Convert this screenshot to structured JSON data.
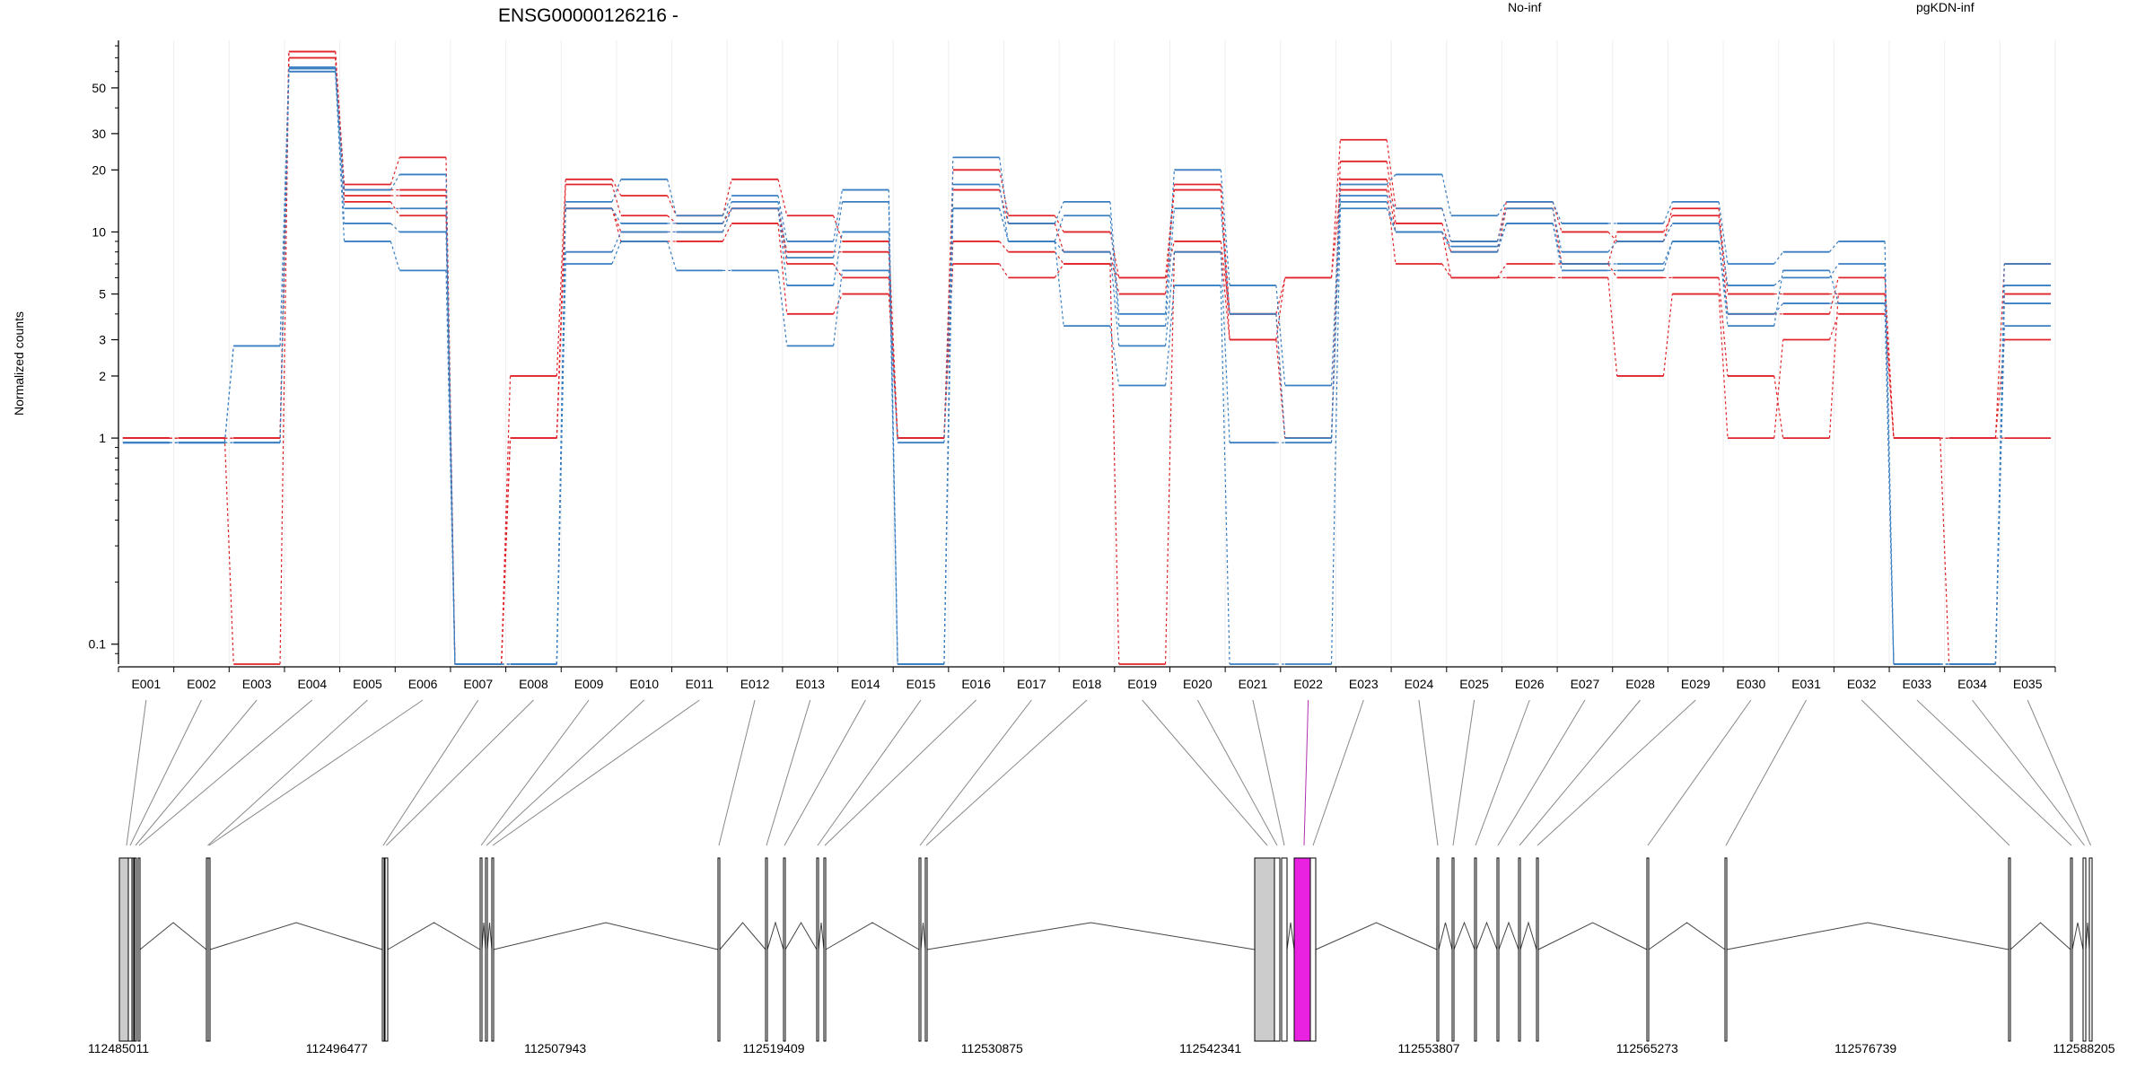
{
  "chart_data": {
    "type": "line",
    "title": "ENSG00000126216 -",
    "xlabel": "",
    "ylabel": "Normalized counts",
    "y_scale": "log",
    "ylim": [
      0.08,
      85
    ],
    "y_ticks": [
      0.1,
      1,
      2,
      3,
      5,
      10,
      20,
      30,
      50
    ],
    "y_tick_labels": [
      "0.1",
      "1",
      "2",
      "3",
      "5",
      "10",
      "20",
      "30",
      "50"
    ],
    "grid": "vertical-light",
    "legend": [
      {
        "name": "No-inf",
        "color": "#e0242a"
      },
      {
        "name": "pgKDN-inf",
        "color": "#3a7fc1"
      }
    ],
    "categories": [
      "E001",
      "E002",
      "E003",
      "E004",
      "E005",
      "E006",
      "E007",
      "E008",
      "E009",
      "E010",
      "E011",
      "E012",
      "E013",
      "E014",
      "E015",
      "E016",
      "E017",
      "E018",
      "E019",
      "E020",
      "E021",
      "E022",
      "E023",
      "E024",
      "E025",
      "E026",
      "E027",
      "E028",
      "E029",
      "E030",
      "E031",
      "E032",
      "E033",
      "E034",
      "E035"
    ],
    "series": [
      {
        "group": "No-inf",
        "color": "#e0242a",
        "values": [
          1,
          1,
          1,
          75,
          17,
          23,
          0.08,
          2,
          18,
          15,
          12,
          18,
          12,
          9,
          1,
          20,
          12,
          10,
          6,
          17,
          4,
          6,
          28,
          13,
          9,
          14,
          10,
          9,
          13,
          5,
          5,
          5,
          1,
          1,
          7
        ]
      },
      {
        "group": "No-inf",
        "color": "#e0242a",
        "values": [
          1,
          1,
          0.08,
          75,
          16,
          16,
          0.08,
          1,
          17,
          12,
          11,
          13,
          8,
          8,
          1,
          16,
          11,
          8,
          5,
          16,
          3,
          1,
          22,
          11,
          8,
          13,
          7,
          10,
          12,
          4,
          4,
          6,
          1,
          0.08,
          5
        ]
      },
      {
        "group": "No-inf",
        "color": "#e0242a",
        "values": [
          1,
          1,
          1,
          70,
          15,
          15,
          0.08,
          1,
          13,
          10,
          10,
          13,
          7,
          6,
          1,
          9,
          8,
          7,
          6,
          9,
          4,
          1,
          18,
          10,
          6,
          7,
          7,
          6,
          6,
          2,
          1,
          5,
          1,
          1,
          3
        ]
      },
      {
        "group": "No-inf",
        "color": "#e0242a",
        "values": [
          1,
          1,
          1,
          70,
          14,
          12,
          0.08,
          1,
          13,
          9,
          9,
          11,
          4,
          5,
          1,
          7,
          6,
          7,
          0.08,
          8,
          3,
          6,
          16,
          7,
          6,
          6,
          6,
          2,
          5,
          1,
          3,
          4,
          1,
          1,
          1
        ]
      },
      {
        "group": "pgKDN-inf",
        "color": "#3a7fc1",
        "values": [
          0.95,
          0.95,
          2.8,
          63,
          16,
          19,
          0.08,
          0.08,
          14,
          18,
          12,
          15,
          9,
          16,
          0.08,
          23,
          11,
          14,
          4,
          20,
          5.5,
          1.8,
          17,
          19,
          12,
          14,
          11,
          11,
          14,
          7,
          8,
          9,
          0.08,
          0.08,
          7
        ]
      },
      {
        "group": "pgKDN-inf",
        "color": "#3a7fc1",
        "values": [
          0.95,
          0.95,
          2.8,
          62,
          13,
          13,
          0.08,
          0.08,
          13,
          11,
          11,
          14,
          7.5,
          14,
          0.08,
          17,
          9,
          12,
          3.5,
          13,
          4,
          1,
          15,
          13,
          9,
          13,
          8,
          9,
          11,
          5.5,
          6,
          7,
          0.08,
          0.08,
          5.5
        ]
      },
      {
        "group": "pgKDN-inf",
        "color": "#3a7fc1",
        "values": [
          0.95,
          0.95,
          0.95,
          60,
          11,
          10,
          0.08,
          0.08,
          8,
          10,
          10,
          13,
          5.5,
          10,
          0.08,
          13,
          9,
          8,
          2.8,
          8,
          0.95,
          0.95,
          14,
          10,
          8.5,
          11,
          7,
          7,
          9,
          4,
          4.5,
          4.5,
          0.08,
          0.08,
          4.5
        ]
      },
      {
        "group": "pgKDN-inf",
        "color": "#3a7fc1",
        "values": [
          0.95,
          0.95,
          0.95,
          60,
          9,
          6.5,
          0.08,
          0.08,
          7,
          9,
          6.5,
          6.5,
          2.8,
          6.5,
          0.95,
          13,
          9,
          3.5,
          1.8,
          5.5,
          0.08,
          0.08,
          13,
          10,
          8,
          11,
          6.5,
          6.5,
          9,
          3.5,
          6.5,
          4.5,
          0.08,
          0.08,
          3.5
        ]
      }
    ],
    "highlighted_exon": "E022",
    "genomic_axis": {
      "tick_labels": [
        "112485011",
        "112496477",
        "112507943",
        "112519409",
        "112530875",
        "112542341",
        "112553807",
        "112565273",
        "112576739",
        "112588205"
      ]
    }
  }
}
